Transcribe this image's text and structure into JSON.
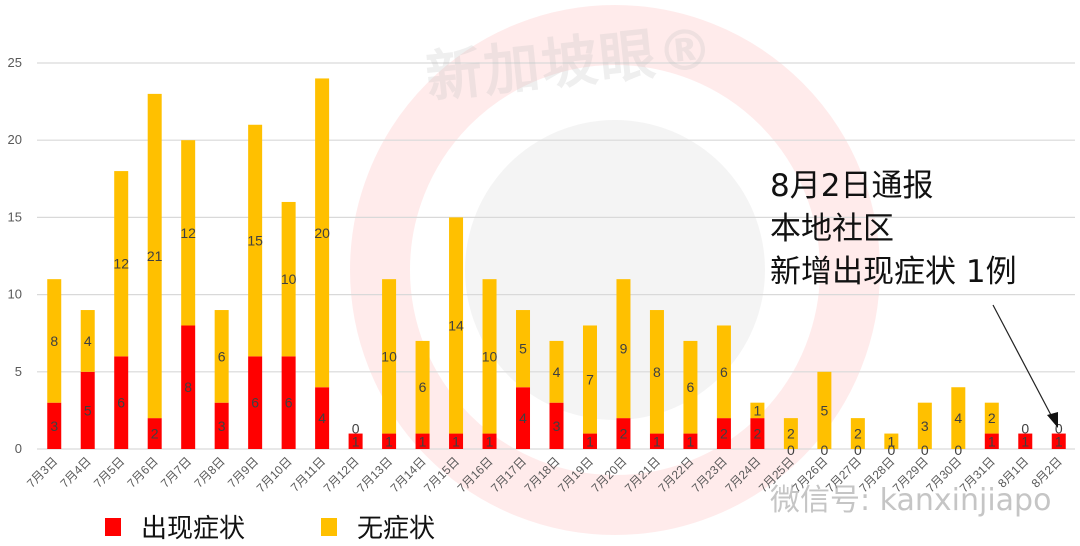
{
  "chart_data": {
    "type": "bar",
    "stacked": true,
    "title": "",
    "xlabel": "",
    "ylabel": "",
    "ylim": [
      0,
      25
    ],
    "yticks": [
      0,
      5,
      10,
      15,
      20,
      25
    ],
    "grid": true,
    "legend_position": "bottom-left",
    "categories": [
      "7月3日",
      "7月4日",
      "7月5日",
      "7月6日",
      "7月7日",
      "7月8日",
      "7月9日",
      "7月10日",
      "7月11日",
      "7月12日",
      "7月13日",
      "7月14日",
      "7月15日",
      "7月16日",
      "7月17日",
      "7月18日",
      "7月19日",
      "7月20日",
      "7月21日",
      "7月22日",
      "7月23日",
      "7月24日",
      "7月25日",
      "7月26日",
      "7月27日",
      "7月28日",
      "7月29日",
      "7月30日",
      "7月31日",
      "8月1日",
      "8月2日"
    ],
    "series": [
      {
        "name": "出现症状",
        "color": "#FF0000",
        "values": [
          3,
          5,
          6,
          2,
          8,
          3,
          6,
          6,
          4,
          1,
          1,
          1,
          1,
          1,
          4,
          3,
          1,
          2,
          1,
          1,
          2,
          2,
          0,
          0,
          0,
          0,
          0,
          0,
          1,
          1,
          1
        ]
      },
      {
        "name": "无症状",
        "color": "#FFC000",
        "values": [
          8,
          4,
          12,
          21,
          12,
          6,
          15,
          10,
          20,
          0,
          10,
          6,
          14,
          10,
          5,
          4,
          7,
          9,
          8,
          6,
          6,
          1,
          2,
          5,
          2,
          1,
          3,
          4,
          2,
          0,
          0
        ]
      }
    ],
    "annotation": {
      "lines": [
        "8月2日通报",
        "本地社区",
        "新增出现症状 1例"
      ],
      "arrow_target": "8月2日"
    }
  },
  "legend": {
    "items": [
      {
        "label": "出现症状",
        "color": "#FF0000"
      },
      {
        "label": "无症状",
        "color": "#FFC000"
      }
    ]
  },
  "watermark": {
    "brand": "新加坡眼®",
    "footer": "微信号: kanxinjiapo"
  }
}
